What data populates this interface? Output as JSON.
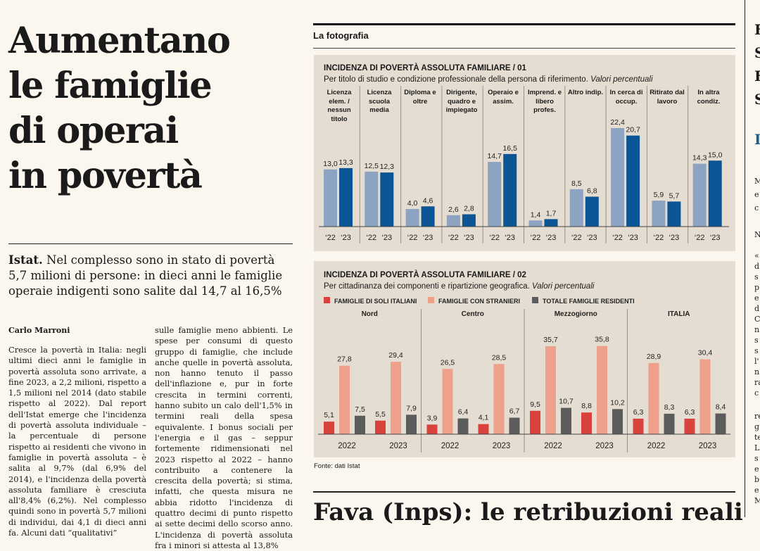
{
  "article": {
    "headline": [
      "Aumentano",
      "le famiglie",
      "di operai",
      "in povertà"
    ],
    "standfirst_lead": "Istat.",
    "standfirst": "Nel complesso sono in stato di povertà 5,7 milioni di persone: in dieci anni le famiglie operaie indigenti sono salite dal 14,7 al 16,5%",
    "author": "Carlo Marroni",
    "col1": "Cresce la povertà in Italia: negli ultimi dieci anni le famiglie in povertà assoluta sono arrivate, a fine 2023, a 2,2 milioni, rispetto a 1,5 milioni nel 2014 (dato stabile rispetto al 2022). Dal report dell'Istat emerge che l'incidenza di povertà assoluta individuale – la percentuale di persone rispetto ai residenti che vivono in famiglie in povertà assoluta – è salita al 9,7% (dal 6,9% del 2014), e l'incidenza della povertà assoluta familiare è cresciuta all'8,4% (6,2%). Nel complesso quindi sono in povertà 5,7 milioni di individui, dai 4,1 di dieci anni fa. Alcuni dati “qualitativi”",
    "col2": "sulle famiglie meno abbienti. Le spese per consumi di questo gruppo di famiglie, che include anche quelle in povertà assoluta, non hanno tenuto il passo dell'inflazione e, pur in forte crescita in termini correnti, hanno subito un calo dell'1,5% in termini reali della spesa equivalente. I bonus sociali per l'energia e il gas – seppur fortemente ridimensionati nel 2023 rispetto al 2022 – hanno contribuito a contenere la crescita della povertà; si stima, infatti, che questa misura ne abbia ridotto l'incidenza di quattro decimi di punto rispetto ai sette decimi dello scorso anno. L'incidenza di povertà assoluta fra i minori si attesta al 13,8%"
  },
  "kicker": "La fotografia",
  "source": "Fonte: dati Istat",
  "headline2": "Fava (Inps): le retribuzioni reali",
  "edge_text": [
    "F",
    "S",
    "F",
    "S",
    "I",
    "M",
    "e",
    "c",
    "N",
    "«",
    "d",
    "s",
    "p",
    "e",
    "d",
    "C",
    "n",
    "s",
    "s",
    "l'",
    "n",
    "ra",
    "c",
    "re",
    "g",
    "te",
    "L",
    "s",
    "e",
    "b",
    "e",
    "M"
  ],
  "colors": {
    "blue_light": "#8da3c2",
    "blue_dark": "#0b5594",
    "red": "#d9413c",
    "salmon": "#eda08a",
    "grey": "#5c5c5c",
    "panel_bg": "#e5ddd1"
  },
  "chart_data": [
    {
      "type": "bar",
      "title": "INCIDENZA DI POVERTÀ ASSOLUTA FAMILIARE / 01",
      "subtitle": "Per titolo di studio e condizione professionale della persona di riferimento.",
      "subtitle_italic": "Valori percentuali",
      "categories": [
        "Licenza elem. / nessun titolo",
        "Licenza scuola media",
        "Diploma e oltre",
        "Dirigente, quadro e impiegato",
        "Operaio e assim.",
        "Imprend. e libero profes.",
        "Altro indip.",
        "In cerca di occup.",
        "Ritirato dal lavoro",
        "In altra condiz."
      ],
      "x_tick_labels": [
        "‘22",
        "‘23"
      ],
      "series": [
        {
          "name": "‘22",
          "values": [
            13.0,
            12.5,
            4.0,
            2.6,
            14.7,
            1.4,
            8.5,
            22.4,
            5.9,
            14.3
          ],
          "labels": [
            "13,0",
            "12,5",
            "4,0",
            "2,6",
            "14,7",
            "1,4",
            "8,5",
            "22,4",
            "5,9",
            "14,3"
          ]
        },
        {
          "name": "‘23",
          "values": [
            13.3,
            12.3,
            4.6,
            2.8,
            16.5,
            1.7,
            6.8,
            20.7,
            5.7,
            15.0
          ],
          "labels": [
            "13,3",
            "12,3",
            "4,6",
            "2,8",
            "16,5",
            "1,7",
            "6,8",
            "20,7",
            "5,7",
            "15,0"
          ]
        }
      ],
      "ylim": [
        0,
        25
      ],
      "grid": false
    },
    {
      "type": "bar",
      "title": "INCIDENZA DI POVERTÀ ASSOLUTA FAMILIARE / 02",
      "subtitle": "Per cittadinanza dei componenti e ripartizione geografica.",
      "subtitle_italic": "Valori percentuali",
      "groups": [
        "Nord",
        "Centro",
        "Mezzogiorno",
        "ITALIA"
      ],
      "years": [
        "2022",
        "2023"
      ],
      "series": [
        {
          "name": "FAMIGLIE DI SOLI ITALIANI",
          "values": [
            5.1,
            5.5,
            3.9,
            4.1,
            9.5,
            8.8,
            6.3,
            6.3
          ],
          "labels": [
            "5,1",
            "5,5",
            "3,9",
            "4,1",
            "9,5",
            "8,8",
            "6,3",
            "6,3"
          ]
        },
        {
          "name": "FAMIGLIE CON STRANIERI",
          "values": [
            27.8,
            29.4,
            26.5,
            28.5,
            35.7,
            35.8,
            28.9,
            30.4
          ],
          "labels": [
            "27,8",
            "29,4",
            "26,5",
            "28,5",
            "35,7",
            "35,8",
            "28,9",
            "30,4"
          ]
        },
        {
          "name": "TOTALE FAMIGLIE RESIDENTI",
          "values": [
            7.5,
            7.9,
            6.4,
            6.7,
            10.7,
            10.2,
            8.3,
            8.4
          ],
          "labels": [
            "7,5",
            "7,9",
            "6,4",
            "6,7",
            "10,7",
            "10,2",
            "8,3",
            "8,4"
          ]
        }
      ],
      "legend": "top",
      "ylim": [
        0,
        40
      ],
      "grid": false
    }
  ]
}
